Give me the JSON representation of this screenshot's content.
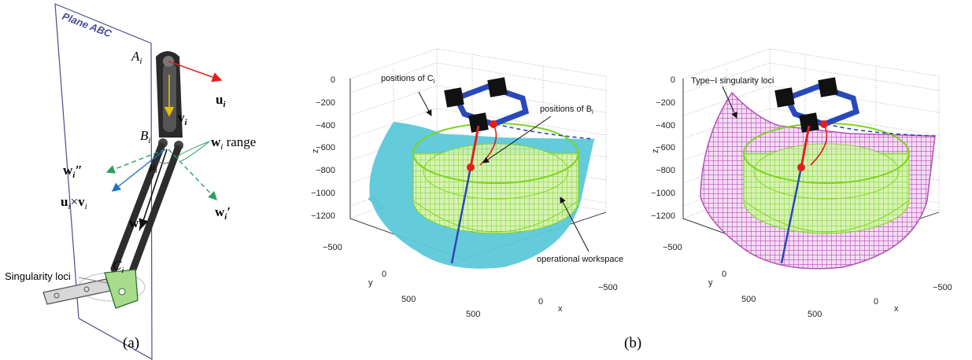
{
  "panel_a": {
    "plane_label": "Plane ABC",
    "label_Ai": "A",
    "label_Bi": "B",
    "label_Ci": "C",
    "sub_i": "i",
    "label_ui": "u",
    "label_vi": "v",
    "label_wi": "w",
    "label_wi_range": "range",
    "label_wi_dprime": "″",
    "label_wi_prime": "′",
    "label_mu": "μ",
    "label_uxv": "×",
    "label_singularity": "Singularity loci",
    "caption": "(a)"
  },
  "panel_b": {
    "caption": "(b)",
    "z_ticks": [
      "0",
      "−200",
      "−400",
      "−600",
      "−800",
      "−1000",
      "−1200"
    ],
    "y_ticks": [
      "−500",
      "0",
      "500"
    ],
    "x_ticks": [
      "−500",
      "0",
      "500"
    ],
    "axis_x": "x",
    "axis_y": "y",
    "axis_z": "z",
    "left_plot": {
      "ann_positions_C": "positions of C",
      "ann_positions_B": "positions of B",
      "ann_workspace": "operational workspace",
      "sub_i": "i"
    },
    "right_plot": {
      "ann_type1": "Type−I singularity loci"
    }
  },
  "colors": {
    "cyan_surface": "#5cc8d8",
    "green_mesh": "#7ed321",
    "magenta_mesh": "#b84fb8",
    "blue_frame": "#2a49b8",
    "red_point": "#e02020",
    "red_arrow": "#e02020",
    "plane_outline": "#4c4c8c"
  }
}
